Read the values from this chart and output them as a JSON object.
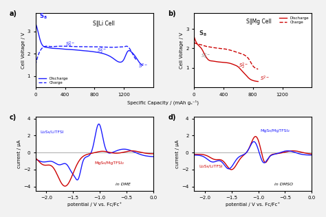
{
  "fig_bg": "#f2f2f2",
  "panel_bg": "#ffffff",
  "a_title": "S‖Li Cell",
  "b_title": "S‖Mg Cell",
  "blue": "#1a1aff",
  "red": "#cc0000",
  "gray": "#888888",
  "ab_xlabel": "Specific Capacity / (mAh gₛ⁻¹)",
  "a_ylabel": "Cell Voltage / V",
  "b_ylabel": "Cell Voltage / V",
  "cd_xlabel": "potential / V vs. Fc/Fc⁺",
  "cd_ylabel": "current / μA",
  "c_label_blue": "Li₂S₈/LiTFSI",
  "c_label_red": "MgS₈/MgTFSI₂",
  "c_solvent": "in DME",
  "d_label_blue": "MgS₈/MgTFSI₂",
  "d_label_red": "Li₂S₈/LiTFSI",
  "d_solvent": "in DMSO"
}
